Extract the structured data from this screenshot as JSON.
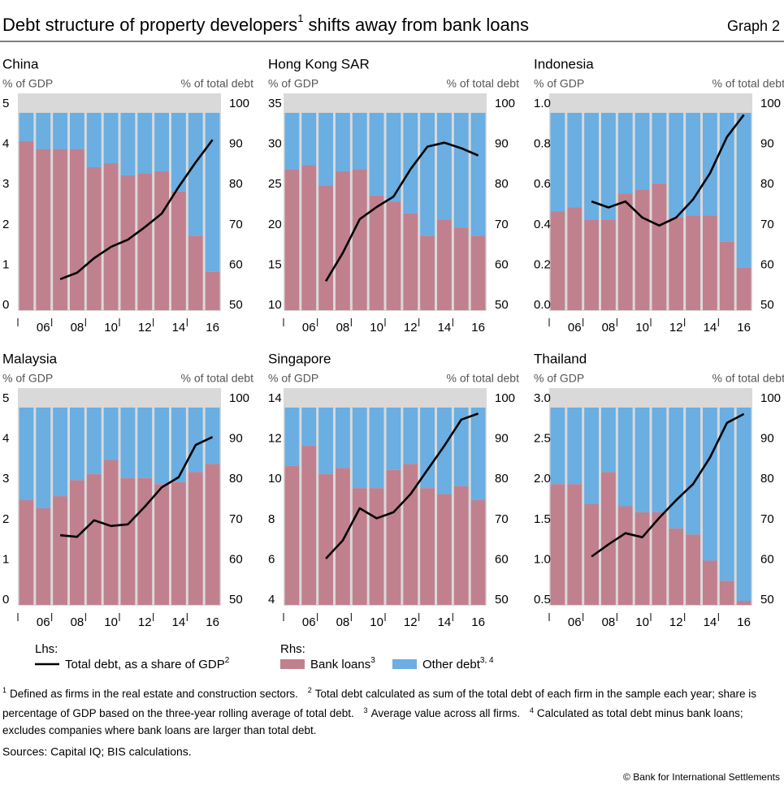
{
  "title": {
    "before": "Debt structure of property developers",
    "note": "1",
    "after": " shifts away from bank loans"
  },
  "graph_label": "Graph 2",
  "chart_data": [
    {
      "type": "bar-line",
      "title": "China",
      "y_label": "% of GDP",
      "y2_label": "% of total debt",
      "categories": [
        null,
        "06",
        null,
        "08",
        null,
        "10",
        null,
        "12",
        null,
        "14",
        null,
        "16"
      ],
      "ylim": [
        0,
        5
      ],
      "yticks": [
        0,
        1,
        2,
        3,
        4,
        5
      ],
      "y2lim": [
        50,
        100
      ],
      "y2ticks": [
        50,
        60,
        70,
        80,
        90,
        100
      ],
      "series": [
        {
          "axis": "y2",
          "color": "#c1808e",
          "values": [
            92,
            90,
            90,
            90,
            85.5,
            86.5,
            83.5,
            84,
            84.5,
            79.5,
            68.5,
            59.5
          ]
        },
        {
          "axis": "y2",
          "color": "#6aaee2",
          "values": [
            7,
            9,
            9,
            9,
            13.5,
            12.5,
            15.5,
            15,
            14.5,
            19.5,
            30.5,
            39.5
          ]
        },
        {
          "axis": "y",
          "color": "#000000",
          "values": [
            null,
            null,
            0.77,
            0.93,
            1.29,
            1.57,
            1.75,
            2.06,
            2.4,
            3.06,
            3.67,
            4.23
          ]
        }
      ]
    },
    {
      "type": "bar-line",
      "title": "Hong Kong SAR",
      "y_label": "% of GDP",
      "y2_label": "% of total debt",
      "categories": [
        null,
        "06",
        null,
        "08",
        null,
        "10",
        null,
        "12",
        null,
        "14",
        null,
        "16"
      ],
      "ylim": [
        10,
        35
      ],
      "yticks": [
        10,
        15,
        20,
        25,
        30,
        35
      ],
      "y2lim": [
        50,
        100
      ],
      "y2ticks": [
        50,
        60,
        70,
        80,
        90,
        100
      ],
      "series": [
        {
          "axis": "y2",
          "color": "#c1808e",
          "values": [
            85,
            86,
            81,
            84.5,
            85,
            78.5,
            77,
            74,
            68.5,
            72.5,
            70.5,
            68.5
          ]
        },
        {
          "axis": "y2",
          "color": "#6aaee2",
          "values": [
            14,
            13,
            18,
            14.5,
            14,
            20.5,
            22,
            25,
            30.5,
            26.5,
            28.5,
            30.5
          ]
        },
        {
          "axis": "y",
          "color": "#000000",
          "values": [
            null,
            null,
            13.6,
            17.1,
            21.3,
            22.8,
            24.1,
            27.5,
            30.3,
            30.8,
            30.1,
            29.2
          ]
        }
      ]
    },
    {
      "type": "bar-line",
      "title": "Indonesia",
      "y_label": "% of GDP",
      "y2_label": "% of total debt",
      "categories": [
        null,
        "06",
        null,
        "08",
        null,
        "10",
        null,
        "12",
        null,
        "14",
        null,
        "16"
      ],
      "ylim": [
        0,
        1
      ],
      "yticks": [
        {
          "value": 0,
          "label": "0.0"
        },
        0.2,
        0.4,
        0.6,
        0.8,
        {
          "value": 1,
          "label": "1.0"
        }
      ],
      "y2lim": [
        50,
        100
      ],
      "y2ticks": [
        50,
        60,
        70,
        80,
        90,
        100
      ],
      "series": [
        {
          "axis": "y2",
          "color": "#c1808e",
          "values": [
            74.5,
            75.5,
            72.5,
            72.5,
            79,
            80,
            81.5,
            73,
            73.5,
            73.5,
            67,
            60.5
          ]
        },
        {
          "axis": "y2",
          "color": "#6aaee2",
          "values": [
            24.5,
            23.5,
            26.5,
            26.5,
            20,
            19,
            17.5,
            26,
            25.5,
            25.5,
            32,
            38.5
          ]
        },
        {
          "axis": "y",
          "color": "#000000",
          "values": [
            null,
            null,
            0.54,
            0.51,
            0.54,
            0.46,
            0.42,
            0.46,
            0.55,
            0.68,
            0.86,
            0.97
          ]
        }
      ]
    },
    {
      "type": "bar-line",
      "title": "Malaysia",
      "y_label": "% of GDP",
      "y2_label": "% of total debt",
      "categories": [
        null,
        "06",
        null,
        "08",
        null,
        "10",
        null,
        "12",
        null,
        "14",
        null,
        "16"
      ],
      "ylim": [
        0,
        5
      ],
      "yticks": [
        0,
        1,
        2,
        3,
        4,
        5
      ],
      "y2lim": [
        50,
        100
      ],
      "y2ticks": [
        50,
        60,
        70,
        80,
        90,
        100
      ],
      "series": [
        {
          "axis": "y2",
          "color": "#c1808e",
          "values": [
            76,
            74,
            77,
            81,
            82.5,
            86,
            81.5,
            81.5,
            80,
            80.5,
            83,
            85
          ]
        },
        {
          "axis": "y2",
          "color": "#6aaee2",
          "values": [
            23,
            25,
            22,
            18,
            16.5,
            13,
            17.5,
            17.5,
            19,
            18.5,
            16,
            14
          ]
        },
        {
          "axis": "y",
          "color": "#000000",
          "values": [
            null,
            null,
            1.73,
            1.69,
            2.1,
            1.96,
            2.0,
            2.44,
            2.92,
            3.17,
            3.97,
            4.17
          ]
        }
      ]
    },
    {
      "type": "bar-line",
      "title": "Singapore",
      "y_label": "% of GDP",
      "y2_label": "% of total debt",
      "categories": [
        null,
        "06",
        null,
        "08",
        null,
        "10",
        null,
        "12",
        null,
        "14",
        null,
        "16"
      ],
      "ylim": [
        4,
        14
      ],
      "yticks": [
        4,
        6,
        8,
        10,
        12,
        14
      ],
      "y2lim": [
        50,
        100
      ],
      "y2ticks": [
        50,
        60,
        70,
        80,
        90,
        100
      ],
      "series": [
        {
          "axis": "y2",
          "color": "#c1808e",
          "values": [
            84.5,
            89.5,
            82.5,
            84,
            79,
            79,
            83.5,
            85,
            79,
            77.5,
            79.5,
            76
          ]
        },
        {
          "axis": "y2",
          "color": "#6aaee2",
          "values": [
            14.5,
            9.5,
            16.5,
            15,
            20,
            20,
            15.5,
            14,
            20,
            21.5,
            19.5,
            23
          ]
        },
        {
          "axis": "y",
          "color": "#000000",
          "values": [
            null,
            null,
            6.3,
            7.2,
            8.8,
            8.3,
            8.6,
            9.5,
            10.7,
            11.9,
            13.2,
            13.5
          ]
        }
      ]
    },
    {
      "type": "bar-line",
      "title": "Thailand",
      "y_label": "% of GDP",
      "y2_label": "% of total debt",
      "categories": [
        null,
        "06",
        null,
        "08",
        null,
        "10",
        null,
        "12",
        null,
        "14",
        null,
        "16"
      ],
      "ylim": [
        0.5,
        3
      ],
      "yticks": [
        0.5,
        {
          "value": 1,
          "label": "1.0"
        },
        1.5,
        {
          "value": 2,
          "label": "2.0"
        },
        2.5,
        {
          "value": 3,
          "label": "3.0"
        }
      ],
      "y2lim": [
        50,
        100
      ],
      "y2ticks": [
        50,
        60,
        70,
        80,
        90,
        100
      ],
      "series": [
        {
          "axis": "y2",
          "color": "#c1808e",
          "values": [
            80,
            80,
            75,
            83,
            74.5,
            73,
            73,
            69,
            67.5,
            61,
            56,
            51
          ]
        },
        {
          "axis": "y2",
          "color": "#6aaee2",
          "values": [
            19,
            19,
            24,
            16,
            24.5,
            26,
            26,
            30,
            31.5,
            38,
            43,
            48
          ]
        },
        {
          "axis": "y",
          "color": "#000000",
          "values": [
            null,
            null,
            1.1,
            1.25,
            1.39,
            1.34,
            1.58,
            1.8,
            2.0,
            2.33,
            2.76,
            2.87
          ]
        }
      ]
    }
  ],
  "legend": {
    "lhs": "Lhs:",
    "rhs": "Rhs:",
    "items": [
      {
        "name": "Total debt, as a share of GDP",
        "note": "2"
      },
      {
        "name": "Bank loans",
        "note": "3"
      },
      {
        "name": "Other debt",
        "note": "3, 4"
      }
    ]
  },
  "footnotes": [
    {
      "num": "1",
      "text": "Defined as firms in the real estate and construction sectors."
    },
    {
      "num": "2",
      "text": "Total debt calculated as sum of the total debt of each firm in the sample each year; share is percentage of GDP based on the three-year rolling average of total debt."
    },
    {
      "num": "3",
      "text": "Average value across all firms."
    },
    {
      "num": "4",
      "text": "Calculated as total debt minus bank loans; excludes companies where bank loans are larger than total debt."
    }
  ],
  "sources": "Sources: Capital IQ; BIS calculations.",
  "copyright": "© Bank for International Settlements"
}
